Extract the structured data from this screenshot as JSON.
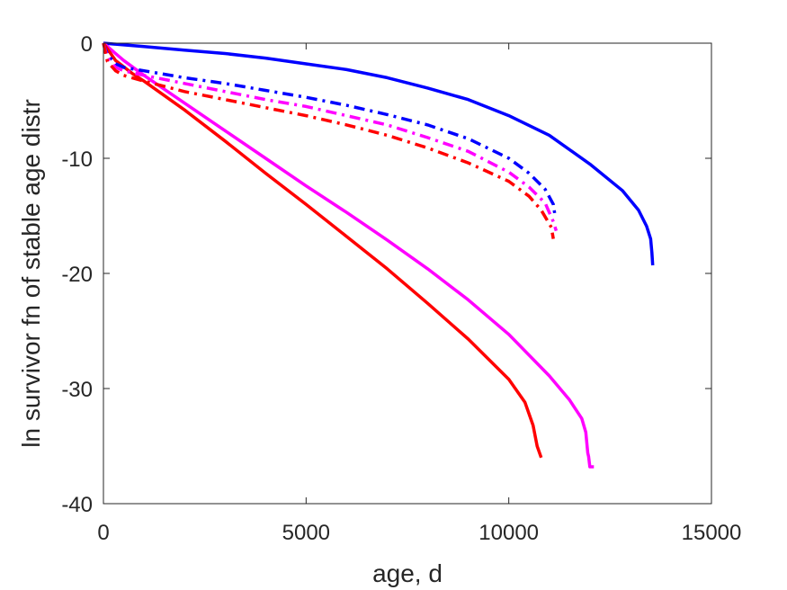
{
  "chart_data": {
    "type": "line",
    "title": "",
    "xlabel": "age, d",
    "ylabel": "ln survivor fn of stable age distr",
    "xlim": [
      0,
      15000
    ],
    "ylim": [
      -40,
      0
    ],
    "xticks": [
      0,
      5000,
      10000,
      15000
    ],
    "xtick_labels": [
      "0",
      "5000",
      "10000",
      "15000"
    ],
    "yticks": [
      0,
      -10,
      -20,
      -30,
      -40
    ],
    "ytick_labels": [
      "0",
      "-10",
      "-20",
      "-30",
      "-40"
    ],
    "grid": false,
    "legend": "none",
    "series": [
      {
        "color": "#0000ff",
        "style": "solid",
        "x": [
          0,
          1000,
          2000,
          3000,
          4000,
          5000,
          6000,
          7000,
          8000,
          9000,
          10000,
          11000,
          12000,
          12800,
          13200,
          13400,
          13500,
          13530,
          13550
        ],
        "y": [
          0,
          -0.3,
          -0.6,
          -0.9,
          -1.3,
          -1.8,
          -2.3,
          -3.0,
          -3.9,
          -4.9,
          -6.3,
          -8.0,
          -10.5,
          -12.8,
          -14.5,
          -15.9,
          -17.0,
          -18.2,
          -19.3
        ]
      },
      {
        "color": "#ff00ff",
        "style": "solid",
        "x": [
          0,
          500,
          1000,
          2000,
          3000,
          4000,
          5000,
          6000,
          7000,
          8000,
          9000,
          10000,
          11000,
          11500,
          11800,
          11900,
          11950,
          11970,
          12000,
          12100
        ],
        "y": [
          0,
          -1.5,
          -2.8,
          -5.2,
          -7.6,
          -10.0,
          -12.4,
          -14.7,
          -17.1,
          -19.6,
          -22.3,
          -25.3,
          -28.9,
          -31.0,
          -32.6,
          -33.8,
          -35.6,
          -35.9,
          -36.8,
          -36.8
        ]
      },
      {
        "color": "#ff0000",
        "style": "solid",
        "x": [
          0,
          300,
          700,
          1000,
          2000,
          3000,
          4000,
          5000,
          6000,
          7000,
          8000,
          9000,
          10000,
          10400,
          10600,
          10700,
          10800
        ],
        "y": [
          0,
          -1.5,
          -2.6,
          -3.3,
          -5.8,
          -8.5,
          -11.3,
          -14.0,
          -16.8,
          -19.6,
          -22.6,
          -25.7,
          -29.2,
          -31.2,
          -33.2,
          -35.0,
          -36.0
        ]
      },
      {
        "color": "#0000ff",
        "style": "dashdot",
        "x": [
          0,
          100,
          300,
          500,
          1000,
          2000,
          3000,
          4000,
          5000,
          6000,
          7000,
          8000,
          9000,
          10000,
          10500,
          10900,
          11100,
          11150
        ],
        "y": [
          0,
          -1.0,
          -1.8,
          -2.1,
          -2.4,
          -3.0,
          -3.5,
          -4.1,
          -4.7,
          -5.4,
          -6.2,
          -7.1,
          -8.3,
          -10.0,
          -11.3,
          -12.7,
          -14.0,
          -15.2
        ]
      },
      {
        "color": "#ff00ff",
        "style": "dashdot",
        "x": [
          0,
          100,
          300,
          500,
          1000,
          2000,
          3000,
          4000,
          5000,
          6000,
          7000,
          8000,
          9000,
          10000,
          10500,
          10900,
          11100,
          11170
        ],
        "y": [
          0,
          -1.3,
          -2.1,
          -2.4,
          -2.8,
          -3.5,
          -4.2,
          -4.9,
          -5.5,
          -6.3,
          -7.1,
          -8.2,
          -9.4,
          -11.2,
          -12.5,
          -13.9,
          -15.5,
          -16.3
        ]
      },
      {
        "color": "#ff0000",
        "style": "dashdot",
        "x": [
          0,
          100,
          300,
          500,
          1000,
          2000,
          3000,
          4000,
          5000,
          6000,
          7000,
          8000,
          9000,
          10000,
          10500,
          10800,
          11050,
          11100
        ],
        "y": [
          0,
          -1.6,
          -2.4,
          -2.8,
          -3.3,
          -4.2,
          -4.9,
          -5.6,
          -6.3,
          -7.1,
          -8.0,
          -9.1,
          -10.4,
          -12.0,
          -13.3,
          -14.5,
          -16.0,
          -17.0
        ]
      }
    ]
  }
}
